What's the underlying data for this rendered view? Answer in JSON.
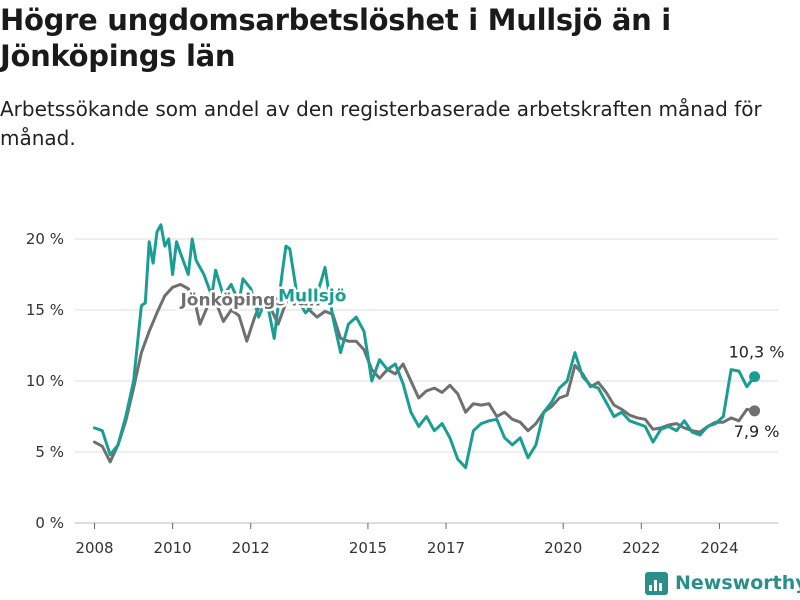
{
  "title": "Högre ungdomsarbetslöshet i Mullsjö än i Jönköpings län",
  "subtitle": "Arbetssökande som andel av den registerbaserade arbetskraften månad för månad.",
  "brand": {
    "name": "Newsworthy",
    "icon": "bar-chart-logo-icon"
  },
  "colors": {
    "mullsjo": "#1a9e93",
    "lan": "#707070",
    "grid": "#dddddd"
  },
  "chart_data": {
    "type": "line",
    "title": "Högre ungdomsarbetslöshet i Mullsjö än i Jönköpings län",
    "subtitle": "Arbetssökande som andel av den registerbaserade arbetskraften månad för månad.",
    "xlabel": "",
    "ylabel": "",
    "xlim": [
      2007.5,
      2025.5
    ],
    "ylim": [
      0,
      22
    ],
    "grid": true,
    "legend": "inline labels",
    "x_ticks": [
      2008,
      2010,
      2012,
      2015,
      2017,
      2020,
      2022,
      2024
    ],
    "x_tick_labels": [
      "2008",
      "2010",
      "2012",
      "2015",
      "2017",
      "2020",
      "2022",
      "2024"
    ],
    "y_ticks": [
      0,
      5,
      10,
      15,
      20
    ],
    "y_tick_labels": [
      "0 %",
      "5 %",
      "10 %",
      "15 %",
      "20 %"
    ],
    "series": [
      {
        "name": "Jönköpings län",
        "label_at": [
          2010.2,
          15.3
        ],
        "end_label": "7,9 %",
        "points": [
          [
            2008.0,
            5.7
          ],
          [
            2008.2,
            5.4
          ],
          [
            2008.4,
            4.3
          ],
          [
            2008.6,
            5.5
          ],
          [
            2008.8,
            7.2
          ],
          [
            2009.0,
            9.5
          ],
          [
            2009.2,
            12.0
          ],
          [
            2009.4,
            13.5
          ],
          [
            2009.6,
            14.8
          ],
          [
            2009.8,
            16.0
          ],
          [
            2010.0,
            16.6
          ],
          [
            2010.2,
            16.8
          ],
          [
            2010.4,
            16.5
          ],
          [
            2010.6,
            15.2
          ],
          [
            2010.7,
            14.0
          ],
          [
            2010.9,
            15.3
          ],
          [
            2011.1,
            15.6
          ],
          [
            2011.3,
            14.2
          ],
          [
            2011.5,
            15.0
          ],
          [
            2011.7,
            14.6
          ],
          [
            2011.9,
            12.8
          ],
          [
            2012.1,
            14.5
          ],
          [
            2012.3,
            15.8
          ],
          [
            2012.5,
            15.2
          ],
          [
            2012.7,
            14.0
          ],
          [
            2012.9,
            15.5
          ],
          [
            2013.1,
            16.3
          ],
          [
            2013.3,
            15.9
          ],
          [
            2013.5,
            15.0
          ],
          [
            2013.7,
            14.5
          ],
          [
            2013.9,
            14.9
          ],
          [
            2014.1,
            14.7
          ],
          [
            2014.3,
            13.0
          ],
          [
            2014.5,
            12.8
          ],
          [
            2014.7,
            12.8
          ],
          [
            2014.9,
            12.2
          ],
          [
            2015.1,
            10.8
          ],
          [
            2015.3,
            10.2
          ],
          [
            2015.5,
            10.8
          ],
          [
            2015.7,
            10.5
          ],
          [
            2015.9,
            11.2
          ],
          [
            2016.1,
            10.0
          ],
          [
            2016.3,
            8.8
          ],
          [
            2016.5,
            9.3
          ],
          [
            2016.7,
            9.5
          ],
          [
            2016.9,
            9.2
          ],
          [
            2017.1,
            9.7
          ],
          [
            2017.3,
            9.1
          ],
          [
            2017.5,
            7.8
          ],
          [
            2017.7,
            8.4
          ],
          [
            2017.9,
            8.3
          ],
          [
            2018.1,
            8.4
          ],
          [
            2018.3,
            7.5
          ],
          [
            2018.5,
            7.8
          ],
          [
            2018.7,
            7.3
          ],
          [
            2018.9,
            7.1
          ],
          [
            2019.1,
            6.5
          ],
          [
            2019.3,
            7.0
          ],
          [
            2019.5,
            7.8
          ],
          [
            2019.7,
            8.2
          ],
          [
            2019.9,
            8.8
          ],
          [
            2020.1,
            9.0
          ],
          [
            2020.3,
            11.1
          ],
          [
            2020.5,
            10.5
          ],
          [
            2020.7,
            9.6
          ],
          [
            2020.9,
            9.9
          ],
          [
            2021.1,
            9.2
          ],
          [
            2021.3,
            8.3
          ],
          [
            2021.5,
            8.0
          ],
          [
            2021.7,
            7.6
          ],
          [
            2021.9,
            7.4
          ],
          [
            2022.1,
            7.3
          ],
          [
            2022.3,
            6.6
          ],
          [
            2022.5,
            6.7
          ],
          [
            2022.7,
            6.9
          ],
          [
            2022.9,
            7.0
          ],
          [
            2023.1,
            6.7
          ],
          [
            2023.3,
            6.5
          ],
          [
            2023.5,
            6.4
          ],
          [
            2023.7,
            6.8
          ],
          [
            2023.9,
            7.1
          ],
          [
            2024.1,
            7.1
          ],
          [
            2024.3,
            7.4
          ],
          [
            2024.5,
            7.2
          ],
          [
            2024.7,
            8.0
          ],
          [
            2024.9,
            7.9
          ]
        ]
      },
      {
        "name": "Mullsjö",
        "label_at": [
          2012.7,
          15.6
        ],
        "end_label": "10,3 %",
        "points": [
          [
            2008.0,
            6.7
          ],
          [
            2008.2,
            6.5
          ],
          [
            2008.4,
            4.8
          ],
          [
            2008.6,
            5.5
          ],
          [
            2008.8,
            7.5
          ],
          [
            2009.0,
            10.0
          ],
          [
            2009.2,
            15.3
          ],
          [
            2009.3,
            15.5
          ],
          [
            2009.4,
            19.8
          ],
          [
            2009.5,
            18.3
          ],
          [
            2009.6,
            20.5
          ],
          [
            2009.7,
            21.0
          ],
          [
            2009.8,
            19.5
          ],
          [
            2009.9,
            20.0
          ],
          [
            2010.0,
            17.5
          ],
          [
            2010.1,
            19.8
          ],
          [
            2010.2,
            19.0
          ],
          [
            2010.4,
            17.5
          ],
          [
            2010.5,
            20.0
          ],
          [
            2010.6,
            18.5
          ],
          [
            2010.8,
            17.5
          ],
          [
            2011.0,
            16.0
          ],
          [
            2011.1,
            17.8
          ],
          [
            2011.3,
            16.0
          ],
          [
            2011.5,
            16.8
          ],
          [
            2011.7,
            15.5
          ],
          [
            2011.8,
            17.2
          ],
          [
            2012.0,
            16.5
          ],
          [
            2012.2,
            14.5
          ],
          [
            2012.4,
            15.8
          ],
          [
            2012.6,
            13.0
          ],
          [
            2012.8,
            17.5
          ],
          [
            2012.9,
            19.5
          ],
          [
            2013.0,
            19.3
          ],
          [
            2013.2,
            15.8
          ],
          [
            2013.4,
            14.8
          ],
          [
            2013.6,
            15.3
          ],
          [
            2013.8,
            17.0
          ],
          [
            2013.9,
            18.0
          ],
          [
            2014.1,
            14.5
          ],
          [
            2014.3,
            12.0
          ],
          [
            2014.5,
            14.0
          ],
          [
            2014.7,
            14.5
          ],
          [
            2014.9,
            13.5
          ],
          [
            2015.1,
            10.0
          ],
          [
            2015.3,
            11.5
          ],
          [
            2015.5,
            10.8
          ],
          [
            2015.7,
            11.2
          ],
          [
            2015.9,
            9.8
          ],
          [
            2016.1,
            7.8
          ],
          [
            2016.3,
            6.8
          ],
          [
            2016.5,
            7.5
          ],
          [
            2016.7,
            6.5
          ],
          [
            2016.9,
            7.0
          ],
          [
            2017.1,
            6.0
          ],
          [
            2017.3,
            4.5
          ],
          [
            2017.5,
            3.9
          ],
          [
            2017.7,
            6.5
          ],
          [
            2017.9,
            7.0
          ],
          [
            2018.1,
            7.2
          ],
          [
            2018.3,
            7.3
          ],
          [
            2018.5,
            6.0
          ],
          [
            2018.7,
            5.5
          ],
          [
            2018.9,
            6.0
          ],
          [
            2019.1,
            4.6
          ],
          [
            2019.3,
            5.5
          ],
          [
            2019.5,
            7.8
          ],
          [
            2019.7,
            8.5
          ],
          [
            2019.9,
            9.5
          ],
          [
            2020.1,
            10.0
          ],
          [
            2020.3,
            12.0
          ],
          [
            2020.5,
            10.3
          ],
          [
            2020.7,
            9.7
          ],
          [
            2020.9,
            9.5
          ],
          [
            2021.1,
            8.5
          ],
          [
            2021.3,
            7.5
          ],
          [
            2021.5,
            7.8
          ],
          [
            2021.7,
            7.2
          ],
          [
            2021.9,
            7.0
          ],
          [
            2022.1,
            6.8
          ],
          [
            2022.3,
            5.7
          ],
          [
            2022.5,
            6.6
          ],
          [
            2022.7,
            6.8
          ],
          [
            2022.9,
            6.5
          ],
          [
            2023.1,
            7.2
          ],
          [
            2023.3,
            6.4
          ],
          [
            2023.5,
            6.2
          ],
          [
            2023.7,
            6.8
          ],
          [
            2023.9,
            7.0
          ],
          [
            2024.1,
            7.5
          ],
          [
            2024.3,
            10.8
          ],
          [
            2024.5,
            10.7
          ],
          [
            2024.7,
            9.6
          ],
          [
            2024.9,
            10.3
          ]
        ]
      }
    ]
  }
}
